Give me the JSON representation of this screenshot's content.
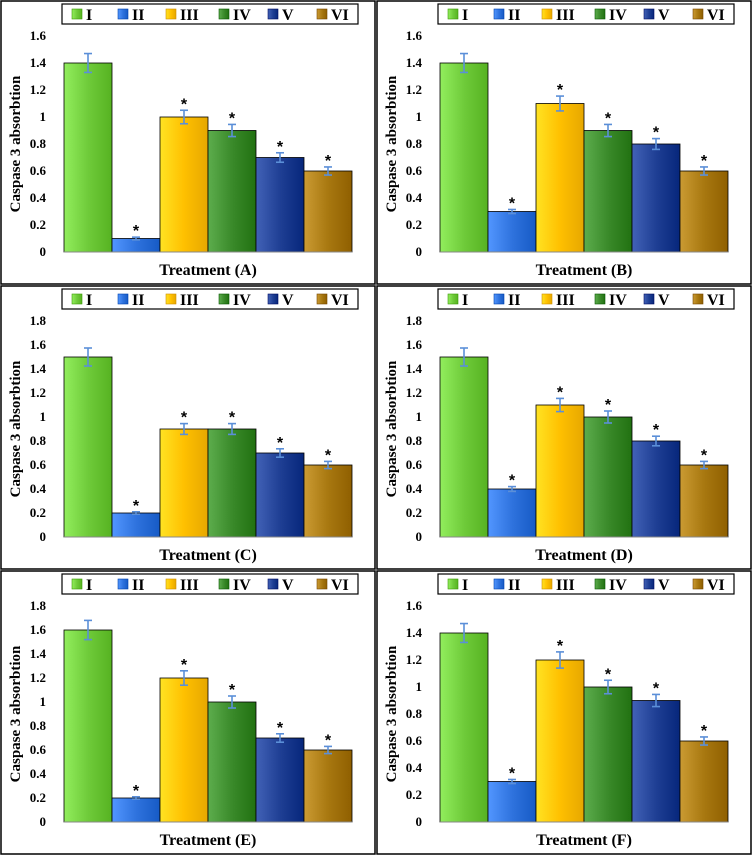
{
  "colors": {
    "I": "#6fcb3a",
    "II": "#2f73de",
    "III": "#ffc000",
    "IV": "#3a8a2a",
    "V": "#1f3f94",
    "VI": "#a87810",
    "error_bar": "#5b8fd8"
  },
  "legend": [
    "I",
    "II",
    "III",
    "IV",
    "V",
    "VI"
  ],
  "chart_data": [
    {
      "type": "bar",
      "xlabel": "Treatment (A)",
      "ylabel": "Caspase 3 absorbtion",
      "ylim": [
        0,
        1.6
      ],
      "yticks": [
        "0",
        "0.2",
        "0.4",
        "0.6",
        "0.8",
        "1",
        "1.2",
        "1.4",
        "1.6"
      ],
      "categories": [
        "I",
        "II",
        "III",
        "IV",
        "V",
        "VI"
      ],
      "values": [
        1.4,
        0.1,
        1.0,
        0.9,
        0.7,
        0.6
      ],
      "errors": [
        0.07,
        0.01,
        0.05,
        0.045,
        0.035,
        0.03
      ],
      "significant": [
        false,
        true,
        true,
        true,
        true,
        true
      ],
      "significance_marker": "*"
    },
    {
      "type": "bar",
      "xlabel": "Treatment (B)",
      "ylabel": "Caspase 3 absorbtion",
      "ylim": [
        0,
        1.6
      ],
      "yticks": [
        "0",
        "0.2",
        "0.4",
        "0.6",
        "0.8",
        "1",
        "1.2",
        "1.4",
        "1.6"
      ],
      "categories": [
        "I",
        "II",
        "III",
        "IV",
        "V",
        "VI"
      ],
      "values": [
        1.4,
        0.3,
        1.1,
        0.9,
        0.8,
        0.6
      ],
      "errors": [
        0.07,
        0.015,
        0.055,
        0.045,
        0.04,
        0.03
      ],
      "significant": [
        false,
        true,
        true,
        true,
        true,
        true
      ],
      "significance_marker": "*"
    },
    {
      "type": "bar",
      "xlabel": "Treatment (C)",
      "ylabel": "Caspase 3 absorbtion",
      "ylim": [
        0,
        1.8
      ],
      "yticks": [
        "0",
        "0.2",
        "0.4",
        "0.6",
        "0.8",
        "1",
        "1.2",
        "1.4",
        "1.6",
        "1.8"
      ],
      "categories": [
        "I",
        "II",
        "III",
        "IV",
        "V",
        "VI"
      ],
      "values": [
        1.5,
        0.2,
        0.9,
        0.9,
        0.7,
        0.6
      ],
      "errors": [
        0.075,
        0.01,
        0.045,
        0.045,
        0.035,
        0.03
      ],
      "significant": [
        false,
        true,
        true,
        true,
        true,
        true
      ],
      "significance_marker": "*"
    },
    {
      "type": "bar",
      "xlabel": "Treatment (D)",
      "ylabel": "Caspase 3 absorbtion",
      "ylim": [
        0,
        1.8
      ],
      "yticks": [
        "0",
        "0.2",
        "0.4",
        "0.6",
        "0.8",
        "1",
        "1.2",
        "1.4",
        "1.6",
        "1.8"
      ],
      "categories": [
        "I",
        "II",
        "III",
        "IV",
        "V",
        "VI"
      ],
      "values": [
        1.5,
        0.4,
        1.1,
        1.0,
        0.8,
        0.6
      ],
      "errors": [
        0.075,
        0.02,
        0.055,
        0.05,
        0.04,
        0.03
      ],
      "significant": [
        false,
        true,
        true,
        true,
        true,
        true
      ],
      "significance_marker": "*"
    },
    {
      "type": "bar",
      "xlabel": "Treatment (E)",
      "ylabel": "Caspase 3 absorbtion",
      "ylim": [
        0,
        1.8
      ],
      "yticks": [
        "0",
        "0.2",
        "0.4",
        "0.6",
        "0.8",
        "1",
        "1.2",
        "1.4",
        "1.6",
        "1.8"
      ],
      "categories": [
        "I",
        "II",
        "III",
        "IV",
        "V",
        "VI"
      ],
      "values": [
        1.6,
        0.2,
        1.2,
        1.0,
        0.7,
        0.6
      ],
      "errors": [
        0.08,
        0.01,
        0.06,
        0.05,
        0.035,
        0.03
      ],
      "significant": [
        false,
        true,
        true,
        true,
        true,
        true
      ],
      "significance_marker": "*"
    },
    {
      "type": "bar",
      "xlabel": "Treatment (F)",
      "ylabel": "Caspase 3 absorbtion",
      "ylim": [
        0,
        1.6
      ],
      "yticks": [
        "0",
        "0.2",
        "0.4",
        "0.6",
        "0.8",
        "1",
        "1.2",
        "1.4",
        "1.6"
      ],
      "categories": [
        "I",
        "II",
        "III",
        "IV",
        "V",
        "VI"
      ],
      "values": [
        1.4,
        0.3,
        1.2,
        1.0,
        0.9,
        0.6
      ],
      "errors": [
        0.07,
        0.015,
        0.06,
        0.05,
        0.045,
        0.03
      ],
      "significant": [
        false,
        true,
        true,
        true,
        true,
        true
      ],
      "significance_marker": "*"
    }
  ]
}
